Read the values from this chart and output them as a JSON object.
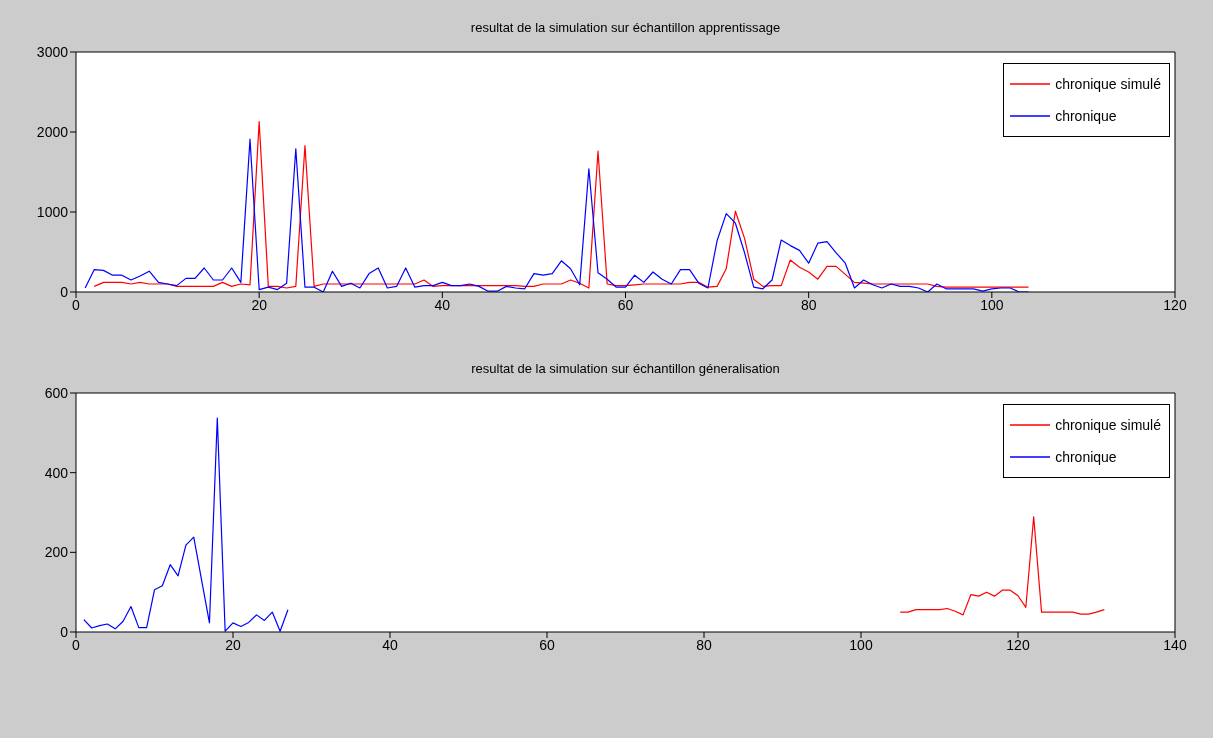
{
  "chart_data": [
    {
      "type": "line",
      "title": "resultat de la simulation sur échantillon apprentissage",
      "xlim": [
        0,
        120
      ],
      "xticks": [
        0,
        20,
        40,
        60,
        80,
        100,
        120
      ],
      "ylim": [
        0,
        3000
      ],
      "yticks": [
        0,
        1000,
        2000,
        3000
      ],
      "legend": "top right",
      "series": [
        {
          "name": "chronique simulé",
          "color": "#ff0000",
          "x": [
            2,
            3,
            4,
            5,
            6,
            7,
            8,
            9,
            10,
            11,
            12,
            13,
            14,
            15,
            16,
            17,
            18,
            19,
            20,
            21,
            22,
            23,
            24,
            25,
            26,
            27,
            28,
            29,
            30,
            31,
            32,
            33,
            34,
            35,
            36,
            37,
            38,
            39,
            40,
            41,
            42,
            43,
            44,
            45,
            46,
            47,
            48,
            49,
            50,
            51,
            52,
            53,
            54,
            55,
            56,
            57,
            58,
            59,
            60,
            61,
            62,
            63,
            64,
            65,
            66,
            67,
            68,
            69,
            70,
            71,
            72,
            73,
            74,
            75,
            76,
            77,
            78,
            79,
            80,
            81,
            82,
            83,
            84,
            85,
            86,
            87,
            88,
            89,
            90,
            91,
            92,
            93,
            94,
            95,
            96,
            97,
            98,
            99,
            100,
            101,
            102,
            103,
            104
          ],
          "values": [
            70,
            120,
            120,
            120,
            100,
            120,
            100,
            100,
            100,
            70,
            70,
            70,
            70,
            70,
            120,
            70,
            100,
            90,
            2130,
            70,
            70,
            50,
            70,
            1830,
            70,
            100,
            100,
            100,
            100,
            100,
            100,
            100,
            100,
            100,
            100,
            100,
            150,
            70,
            80,
            80,
            80,
            80,
            80,
            80,
            80,
            80,
            80,
            70,
            70,
            100,
            100,
            100,
            150,
            110,
            50,
            1760,
            100,
            80,
            80,
            90,
            100,
            100,
            100,
            100,
            100,
            120,
            120,
            60,
            70,
            290,
            1010,
            670,
            160,
            70,
            80,
            80,
            400,
            310,
            250,
            160,
            320,
            320,
            220,
            120,
            110,
            100,
            100,
            100,
            100,
            100,
            100,
            100,
            70,
            60,
            60,
            60,
            60,
            60,
            60,
            60,
            60,
            60,
            60
          ]
        },
        {
          "name": "chronique",
          "color": "#0000ff",
          "x": [
            1,
            2,
            3,
            4,
            5,
            6,
            7,
            8,
            9,
            10,
            11,
            12,
            13,
            14,
            15,
            16,
            17,
            18,
            19,
            20,
            21,
            22,
            23,
            24,
            25,
            26,
            27,
            28,
            29,
            30,
            31,
            32,
            33,
            34,
            35,
            36,
            37,
            38,
            39,
            40,
            41,
            42,
            43,
            44,
            45,
            46,
            47,
            48,
            49,
            50,
            51,
            52,
            53,
            54,
            55,
            56,
            57,
            58,
            59,
            60,
            61,
            62,
            63,
            64,
            65,
            66,
            67,
            68,
            69,
            70,
            71,
            72,
            73,
            74,
            75,
            76,
            77,
            78,
            79,
            80,
            81,
            82,
            83,
            84,
            85,
            86,
            87,
            88,
            89,
            90,
            91,
            92,
            93,
            94,
            95,
            96,
            97,
            98,
            99,
            100,
            101,
            102,
            103,
            104
          ],
          "values": [
            50,
            280,
            270,
            210,
            210,
            150,
            200,
            260,
            120,
            100,
            80,
            170,
            170,
            300,
            150,
            150,
            300,
            120,
            1910,
            30,
            60,
            30,
            110,
            1790,
            60,
            60,
            0,
            260,
            70,
            110,
            50,
            230,
            300,
            50,
            70,
            300,
            60,
            80,
            80,
            120,
            80,
            80,
            100,
            70,
            10,
            10,
            70,
            50,
            40,
            230,
            210,
            230,
            390,
            290,
            90,
            1540,
            240,
            160,
            60,
            60,
            210,
            120,
            250,
            160,
            100,
            280,
            280,
            110,
            50,
            640,
            980,
            860,
            490,
            60,
            40,
            150,
            650,
            580,
            520,
            360,
            610,
            630,
            490,
            360,
            50,
            150,
            90,
            50,
            100,
            70,
            70,
            50,
            0,
            100,
            40,
            40,
            40,
            40,
            10,
            40,
            50,
            50,
            0,
            0
          ]
        }
      ]
    },
    {
      "type": "line",
      "title": "resultat de la simulation sur échantillon géneralisation",
      "xlim": [
        0,
        140
      ],
      "xticks": [
        0,
        20,
        40,
        60,
        80,
        100,
        120,
        140
      ],
      "ylim": [
        0,
        600
      ],
      "yticks": [
        0,
        200,
        400,
        600
      ],
      "legend": "top right",
      "series": [
        {
          "name": "chronique simulé",
          "color": "#ff0000",
          "x": [
            105,
            106,
            107,
            108,
            109,
            110,
            111,
            112,
            113,
            114,
            115,
            116,
            117,
            118,
            119,
            120,
            121,
            122,
            123,
            124,
            125,
            126,
            127,
            128,
            129,
            130,
            131
          ],
          "values": [
            50,
            50,
            56,
            56,
            56,
            56,
            59,
            52,
            43,
            94,
            90,
            100,
            90,
            105,
            105,
            91,
            62,
            289,
            50,
            50,
            50,
            50,
            50,
            45,
            45,
            50,
            56
          ]
        },
        {
          "name": "chronique",
          "color": "#0000ff",
          "x": [
            1,
            2,
            3,
            4,
            5,
            6,
            7,
            8,
            9,
            10,
            11,
            12,
            13,
            14,
            15,
            16,
            17,
            18,
            19,
            20,
            21,
            22,
            23,
            24,
            25,
            26,
            27
          ],
          "values": [
            31,
            10,
            16,
            20,
            8,
            27,
            64,
            11,
            11,
            106,
            116,
            169,
            141,
            218,
            238,
            130,
            23,
            537,
            2,
            23,
            14,
            24,
            43,
            29,
            50,
            2,
            56
          ]
        }
      ]
    }
  ]
}
